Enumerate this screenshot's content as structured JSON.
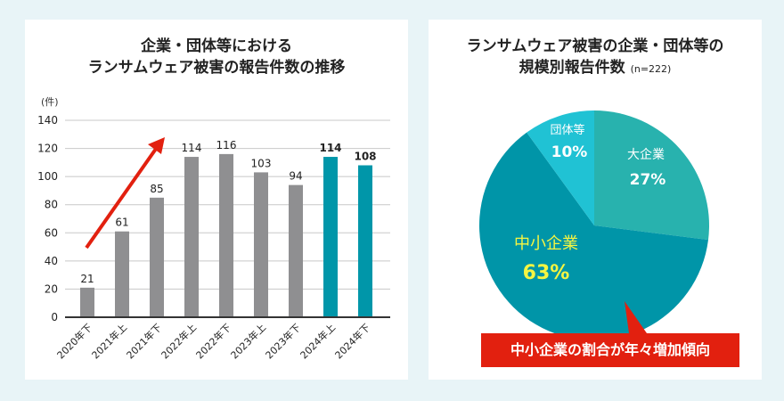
{
  "chart_data": [
    {
      "type": "bar",
      "title": "企業・団体等における\nランサムウェア被害の報告件数の推移",
      "title_lines": [
        "企業・団体等における",
        "ランサムウェア被害の報告件数の推移"
      ],
      "ylabel": "(件)",
      "ylim": [
        0,
        140
      ],
      "yticks": [
        0,
        20,
        40,
        60,
        80,
        100,
        120,
        140
      ],
      "grid": true,
      "categories": [
        "2020年下",
        "2021年上",
        "2021年下",
        "2022年上",
        "2022年下",
        "2023年上",
        "2023年下",
        "2024年上",
        "2024年下"
      ],
      "values": [
        21,
        61,
        85,
        114,
        116,
        103,
        94,
        114,
        108
      ],
      "colors": {
        "past": "#8f8f91",
        "highlight": "#0096a9",
        "arrow": "#e2200f"
      },
      "highlighted": [
        7,
        8
      ]
    },
    {
      "type": "pie",
      "title_lines": [
        "ランサムウェア被害の企業・団体等の",
        "規模別報告件数"
      ],
      "note": "(n=222)",
      "slices": [
        {
          "label": "大企業",
          "value": 27,
          "pct": "27%",
          "color": "#28b2ae"
        },
        {
          "label": "中小企業",
          "value": 63,
          "pct": "63%",
          "color": "#0095a8"
        },
        {
          "label": "団体等",
          "value": 10,
          "pct": "10%",
          "color": "#20c2d4"
        }
      ],
      "callout": "中小企業の割合が年々増加傾向"
    }
  ]
}
